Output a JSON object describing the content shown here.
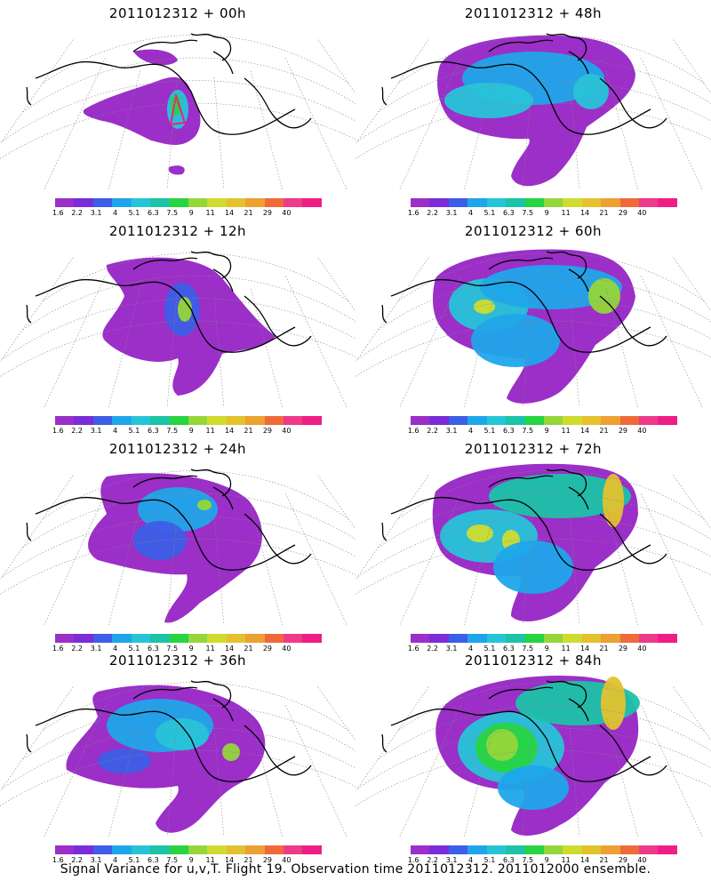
{
  "panels": [
    {
      "title": "2011012312 + 00h",
      "lead": 0
    },
    {
      "title": "2011012312 + 48h",
      "lead": 48
    },
    {
      "title": "2011012312 + 12h",
      "lead": 12
    },
    {
      "title": "2011012312 + 60h",
      "lead": 60
    },
    {
      "title": "2011012312 + 24h",
      "lead": 24
    },
    {
      "title": "2011012312 + 72h",
      "lead": 72
    },
    {
      "title": "2011012312 + 36h",
      "lead": 36
    },
    {
      "title": "2011012312 + 84h",
      "lead": 84
    }
  ],
  "colorbar": {
    "labels": [
      "1.6",
      "2.2",
      "3.1",
      "4",
      "5.1",
      "6.3",
      "7.5",
      "9",
      "11",
      "14",
      "21",
      "29",
      "40"
    ],
    "colors": [
      "#9b2fc8",
      "#7a2cd8",
      "#3d5ee6",
      "#1fa6ea",
      "#27c4d8",
      "#1bc3a8",
      "#27d441",
      "#95d63a",
      "#cfdc2e",
      "#e3c22e",
      "#eca132",
      "#ef6a3a",
      "#ee3a8a",
      "#f01d86"
    ]
  },
  "footer": "Signal Variance for u,v,T. Flight 19. Observation time 2011012312. 2011012000 ensemble."
}
